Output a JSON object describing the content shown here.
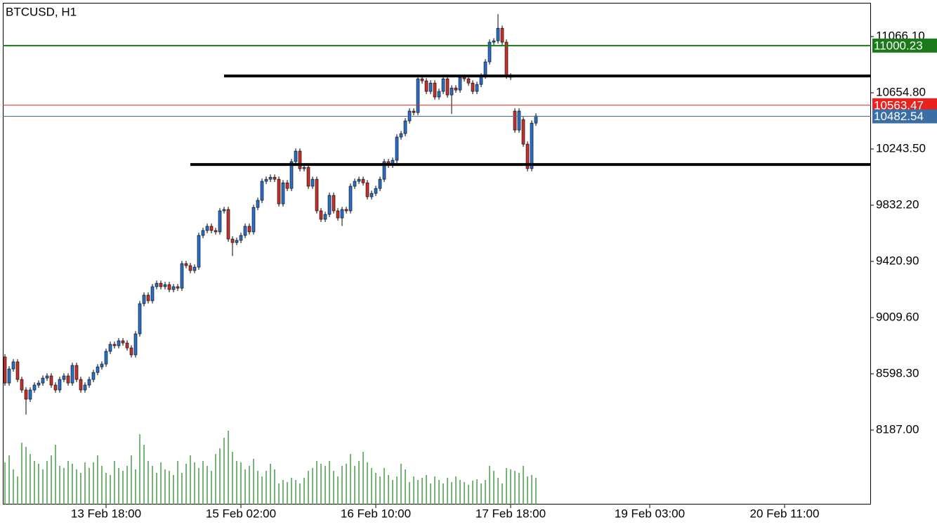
{
  "chart_data": {
    "type": "candlestick",
    "title": "BTCUSD, H1",
    "open": [
      8722,
      8531,
      8634,
      8686,
      8557,
      8480,
      8413,
      8480,
      8516,
      8531,
      8567,
      8583,
      8516,
      8480,
      8557,
      8583,
      8531,
      8660,
      8557,
      8480,
      8516,
      8557,
      8608,
      8649,
      8670,
      8763,
      8814,
      8804,
      8840,
      8824,
      8788,
      8737,
      8891,
      9112,
      9174,
      9133,
      9236,
      9261,
      9236,
      9251,
      9215,
      9236,
      9225,
      9405,
      9390,
      9354,
      9379,
      9611,
      9647,
      9678,
      9647,
      9637,
      9791,
      9801,
      9585,
      9559,
      9575,
      9611,
      9678,
      9637,
      9816,
      9868,
      10007,
      10022,
      10037,
      10022,
      9842,
      9996,
      9955,
      10151,
      10228,
      10099,
      10109,
      9971,
      10022,
      9791,
      9729,
      9765,
      9904,
      9791,
      9739,
      9801,
      9791,
      9971,
      10007,
      10022,
      9996,
      9894,
      9919,
      9955,
      10022,
      10151,
      10125,
      10161,
      10331,
      10356,
      10449,
      10521,
      10510,
      10757,
      10742,
      10665,
      10726,
      10624,
      10665,
      10757,
      10639,
      10690,
      10675,
      10768,
      10757,
      10726,
      10665,
      10716,
      10778,
      10881,
      11025,
      11035,
      11127,
      11025,
      10778,
      10521,
      10382,
      10459,
      10279,
      10100,
      10433
    ],
    "high": [
      8742,
      8654,
      8706,
      8706,
      8577,
      8500,
      8500,
      8536,
      8551,
      8587,
      8603,
      8603,
      8536,
      8577,
      8603,
      8603,
      8680,
      8680,
      8577,
      8536,
      8577,
      8628,
      8669,
      8690,
      8783,
      8834,
      8834,
      8860,
      8860,
      8844,
      8808,
      8911,
      9132,
      9194,
      9194,
      9256,
      9281,
      9281,
      9271,
      9271,
      9256,
      9256,
      9425,
      9425,
      9410,
      9399,
      9631,
      9667,
      9698,
      9698,
      9667,
      9811,
      9821,
      9821,
      9605,
      9595,
      9631,
      9698,
      9698,
      9836,
      9888,
      10027,
      10042,
      10057,
      10057,
      10042,
      10016,
      10016,
      10171,
      10248,
      10248,
      10129,
      10129,
      10042,
      10042,
      9811,
      9785,
      9924,
      9924,
      9811,
      9821,
      9821,
      9991,
      10027,
      10042,
      10042,
      10016,
      9939,
      9975,
      10042,
      10171,
      10171,
      10181,
      10351,
      10376,
      10469,
      10541,
      10541,
      10777,
      10777,
      10762,
      10746,
      10746,
      10685,
      10777,
      10777,
      10710,
      10710,
      10788,
      10788,
      10777,
      10746,
      10736,
      10798,
      10901,
      11045,
      11055,
      11230,
      11147,
      11045,
      10798,
      10541,
      10541,
      10479,
      10299,
      10453,
      10505
    ],
    "low": [
      8511,
      8511,
      8614,
      8537,
      8460,
      8300,
      8393,
      8460,
      8496,
      8511,
      8547,
      8496,
      8460,
      8460,
      8537,
      8511,
      8511,
      8537,
      8460,
      8460,
      8496,
      8537,
      8588,
      8629,
      8650,
      8743,
      8784,
      8784,
      8804,
      8768,
      8717,
      8717,
      8871,
      9092,
      9113,
      9113,
      9216,
      9216,
      9216,
      9195,
      9195,
      9205,
      9205,
      9370,
      9334,
      9334,
      9359,
      9591,
      9627,
      9627,
      9617,
      9617,
      9771,
      9565,
      9460,
      9539,
      9555,
      9591,
      9617,
      9617,
      9796,
      9848,
      9987,
      10002,
      10002,
      9822,
      9822,
      9935,
      9935,
      10131,
      10079,
      10079,
      9951,
      9951,
      9771,
      9709,
      9709,
      9745,
      9771,
      9719,
      9680,
      9771,
      9771,
      9951,
      9987,
      9976,
      9874,
      9874,
      9899,
      9935,
      10002,
      10105,
      10105,
      10141,
      10311,
      10336,
      10429,
      10490,
      10490,
      10722,
      10645,
      10645,
      10604,
      10604,
      10645,
      10619,
      10500,
      10655,
      10655,
      10737,
      10706,
      10645,
      10645,
      10696,
      10758,
      10861,
      11005,
      11015,
      11005,
      10758,
      10748,
      10362,
      10362,
      10259,
      10080,
      10080,
      10413
    ],
    "close": [
      8531,
      8634,
      8686,
      8557,
      8480,
      8413,
      8480,
      8516,
      8531,
      8567,
      8583,
      8516,
      8480,
      8557,
      8583,
      8531,
      8660,
      8557,
      8480,
      8516,
      8557,
      8608,
      8649,
      8670,
      8763,
      8814,
      8804,
      8840,
      8824,
      8788,
      8737,
      8891,
      9112,
      9174,
      9133,
      9236,
      9261,
      9236,
      9251,
      9215,
      9236,
      9225,
      9405,
      9390,
      9354,
      9379,
      9611,
      9647,
      9678,
      9647,
      9637,
      9791,
      9801,
      9585,
      9559,
      9575,
      9611,
      9678,
      9637,
      9816,
      9868,
      10007,
      10022,
      10037,
      10022,
      9842,
      9996,
      9955,
      10151,
      10228,
      10099,
      10109,
      9971,
      10022,
      9791,
      9729,
      9765,
      9904,
      9791,
      9739,
      9801,
      9791,
      9971,
      10007,
      10022,
      9996,
      9894,
      9919,
      9955,
      10022,
      10151,
      10125,
      10161,
      10331,
      10356,
      10449,
      10521,
      10510,
      10757,
      10742,
      10665,
      10726,
      10624,
      10665,
      10757,
      10639,
      10690,
      10675,
      10768,
      10757,
      10726,
      10665,
      10716,
      10778,
      10881,
      11025,
      11035,
      11127,
      11025,
      10778,
      10768,
      10382,
      10521,
      10279,
      10100,
      10433,
      10485
    ],
    "volume": [
      60,
      70,
      50,
      40,
      88,
      82,
      72,
      62,
      58,
      50,
      62,
      70,
      85,
      55,
      52,
      62,
      58,
      50,
      45,
      60,
      52,
      60,
      70,
      55,
      45,
      42,
      62,
      52,
      48,
      55,
      70,
      50,
      100,
      85,
      62,
      55,
      45,
      60,
      50,
      48,
      42,
      62,
      45,
      58,
      70,
      60,
      52,
      62,
      55,
      48,
      72,
      80,
      95,
      105,
      75,
      62,
      60,
      50,
      55,
      65,
      48,
      40,
      48,
      58,
      50,
      30,
      35,
      32,
      38,
      35,
      30,
      38,
      48,
      52,
      62,
      58,
      55,
      62,
      48,
      40,
      55,
      58,
      72,
      55,
      62,
      75,
      60,
      52,
      45,
      40,
      52,
      42,
      35,
      40,
      58,
      50,
      32,
      40,
      35,
      38,
      42,
      30,
      40,
      35,
      30,
      38,
      32,
      40,
      35,
      32,
      28,
      34,
      36,
      30,
      35,
      55,
      48,
      38,
      30,
      52,
      50,
      48,
      45,
      55,
      40,
      42,
      38
    ],
    "up_color": "#2a6fc9",
    "down_color": "#c8302a",
    "volume_color": "#2e8b2e",
    "xlim": [
      -0.5,
      205.5
    ],
    "ylim": [
      7642,
      11308
    ],
    "volume_lim": [
      0,
      713
    ],
    "xticks": [
      {
        "value": 24,
        "label": "13 Feb 18:00"
      },
      {
        "value": 56,
        "label": "15 Feb 02:00"
      },
      {
        "value": 88,
        "label": "16 Feb 10:00"
      },
      {
        "value": 120,
        "label": "17 Feb 18:00"
      },
      {
        "value": 153,
        "label": "19 Feb 03:00"
      },
      {
        "value": 185,
        "label": "20 Feb 11:00"
      }
    ],
    "yticks": [
      {
        "value": 11066.1,
        "label": "11066.10"
      },
      {
        "value": 10654.8,
        "label": "10654.80"
      },
      {
        "value": 10243.5,
        "label": "10243.50"
      },
      {
        "value": 9832.2,
        "label": "9832.20"
      },
      {
        "value": 9420.9,
        "label": "9420.90"
      },
      {
        "value": 9009.6,
        "label": "9009.60"
      },
      {
        "value": 8598.3,
        "label": "8598.30"
      },
      {
        "value": 8187,
        "label": "8187.00"
      }
    ],
    "price_lines": [
      {
        "value": 11000.23,
        "color": "#1a7a1a"
      },
      {
        "value": 10563.47,
        "color": "#e8231e"
      },
      {
        "value": 10482.54,
        "color": "#3a6ea5"
      }
    ],
    "levels": [
      {
        "value": 10778,
        "start": 52
      },
      {
        "value": 10130,
        "start": 44
      }
    ]
  }
}
